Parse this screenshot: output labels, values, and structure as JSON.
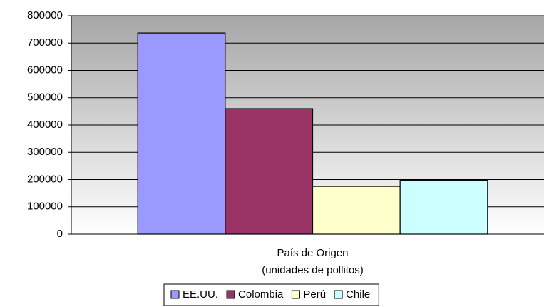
{
  "chart_data": {
    "type": "bar",
    "categories": [
      "País de Origen"
    ],
    "xlabel": "(unidades de pollitos)",
    "series": [
      {
        "name": "EE.UU.",
        "color": "#9999ff",
        "values": [
          737000
        ]
      },
      {
        "name": "Colombia",
        "color": "#993366",
        "values": [
          460000
        ]
      },
      {
        "name": "Perú",
        "color": "#ffffcc",
        "values": [
          175000
        ]
      },
      {
        "name": "Chile",
        "color": "#ccffff",
        "values": [
          197000
        ]
      }
    ],
    "ylim": [
      0,
      800000
    ],
    "yticks": [
      0,
      100000,
      200000,
      300000,
      400000,
      500000,
      600000,
      700000,
      800000
    ],
    "grid": true,
    "legend": "bottom"
  }
}
